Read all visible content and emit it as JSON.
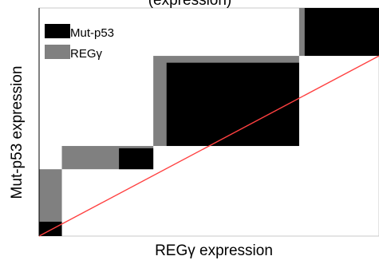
{
  "chart_data": {
    "type": "heatmap",
    "title": "",
    "xlabel": "REGγ expression",
    "ylabel": "Mut-p53 expression",
    "xlim": [
      0,
      1
    ],
    "ylim": [
      0,
      1
    ],
    "grid": false,
    "legend_position": "top-left",
    "legend": [
      {
        "name": "Mut-p53",
        "color": "#000000"
      },
      {
        "name": "REGγ",
        "color": "#808080"
      }
    ],
    "top_clipped_text": "(expression)",
    "gray_blocks": [
      {
        "x0": 0.0,
        "x1": 0.067,
        "y0": 0.0,
        "y1": 0.293
      },
      {
        "x0": 0.067,
        "x1": 0.336,
        "y0": 0.293,
        "y1": 0.395
      },
      {
        "x0": 0.336,
        "x1": 0.765,
        "y0": 0.395,
        "y1": 0.79
      },
      {
        "x0": 0.765,
        "x1": 0.781,
        "y0": 0.79,
        "y1": 1.0
      }
    ],
    "black_blocks": [
      {
        "x0": 0.0,
        "x1": 0.067,
        "y0": 0.0,
        "y1": 0.063
      },
      {
        "x0": 0.235,
        "x1": 0.336,
        "y0": 0.293,
        "y1": 0.385
      },
      {
        "x0": 0.375,
        "x1": 0.765,
        "y0": 0.395,
        "y1": 0.76
      },
      {
        "x0": 0.781,
        "x1": 1.0,
        "y0": 0.79,
        "y1": 1.0
      }
    ],
    "reference_line": {
      "color": "#ff4040",
      "from": [
        0,
        0
      ],
      "to": [
        1,
        0.79
      ]
    }
  }
}
